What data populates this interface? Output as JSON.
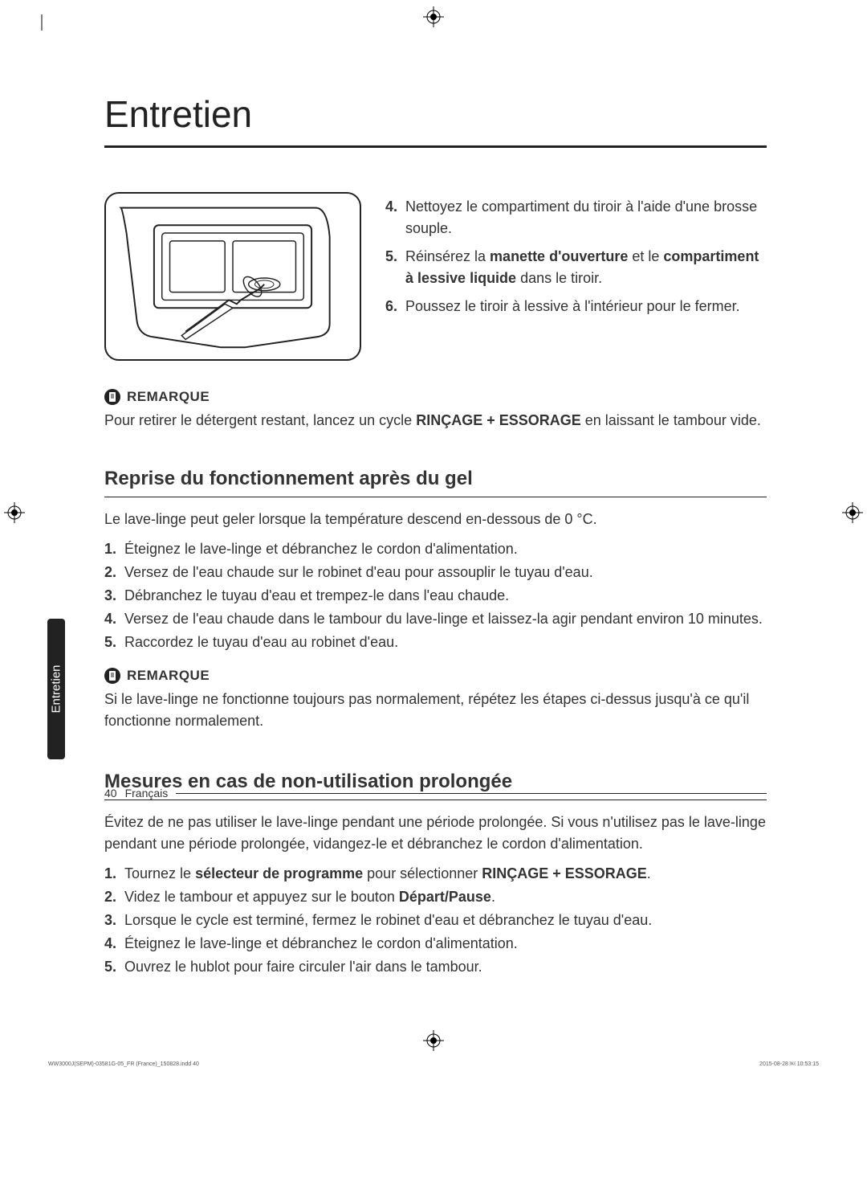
{
  "title": "Entretien",
  "top_instructions": [
    {
      "num": "4.",
      "text": "Nettoyez le compartiment du tiroir à l'aide d'une brosse souple."
    },
    {
      "num": "5.",
      "text_parts": [
        "Réinsérez la ",
        {
          "bold": "manette d'ouverture"
        },
        " et le ",
        {
          "bold": "compartiment à lessive liquide"
        },
        " dans le tiroir."
      ]
    },
    {
      "num": "6.",
      "text": "Poussez le tiroir à lessive à l'intérieur pour le fermer."
    }
  ],
  "note1": {
    "label": "REMARQUE",
    "text_parts": [
      "Pour retirer le détergent restant, lancez un cycle ",
      {
        "bold": "RINÇAGE + ESSORAGE"
      },
      " en laissant le tambour vide."
    ]
  },
  "section1": {
    "heading": "Reprise du fonctionnement après du gel",
    "intro": "Le lave-linge peut geler lorsque la température descend en-dessous de 0 °C.",
    "items": [
      {
        "num": "1.",
        "text": "Éteignez le lave-linge et débranchez le cordon d'alimentation."
      },
      {
        "num": "2.",
        "text": "Versez de l'eau chaude sur le robinet d'eau pour assouplir le tuyau d'eau."
      },
      {
        "num": "3.",
        "text": "Débranchez le tuyau d'eau et trempez-le dans l'eau chaude."
      },
      {
        "num": "4.",
        "text": "Versez de l'eau chaude dans le tambour du lave-linge et laissez-la agir pendant environ 10 minutes."
      },
      {
        "num": "5.",
        "text": "Raccordez le tuyau d'eau au robinet d'eau."
      }
    ]
  },
  "note2": {
    "label": "REMARQUE",
    "text": "Si le lave-linge ne fonctionne toujours pas normalement, répétez les étapes ci-dessus jusqu'à ce qu'il fonctionne normalement."
  },
  "section2": {
    "heading": "Mesures en cas de non-utilisation prolongée",
    "intro": "Évitez de ne pas utiliser le lave-linge pendant une période prolongée. Si vous n'utilisez pas le lave-linge pendant une période prolongée, vidangez-le et débranchez le cordon d'alimentation.",
    "items": [
      {
        "num": "1.",
        "text_parts": [
          "Tournez le ",
          {
            "bold": "sélecteur de programme"
          },
          " pour sélectionner ",
          {
            "bold": "RINÇAGE + ESSORAGE"
          },
          "."
        ]
      },
      {
        "num": "2.",
        "text_parts": [
          "Videz le tambour et appuyez sur le bouton ",
          {
            "bold": "Départ/Pause"
          },
          "."
        ]
      },
      {
        "num": "3.",
        "text": "Lorsque le cycle est terminé, fermez le robinet d'eau et débranchez le tuyau d'eau."
      },
      {
        "num": "4.",
        "text": "Éteignez le lave-linge et débranchez le cordon d'alimentation."
      },
      {
        "num": "5.",
        "text": "Ouvrez le hublot pour faire circuler l'air dans le tambour."
      }
    ]
  },
  "side_tab": "Entretien",
  "footer": {
    "page": "40",
    "lang": "Français"
  },
  "meta": {
    "left": "WW3000J(SEPM)-03581G-05_FR (France)_150828.indd   40",
    "right": "2015-08-28   ￼ 10:53:15"
  },
  "colors": {
    "text": "#333333",
    "heading": "#222222",
    "background": "#ffffff",
    "tab_bg": "#222222",
    "tab_text": "#ffffff"
  }
}
